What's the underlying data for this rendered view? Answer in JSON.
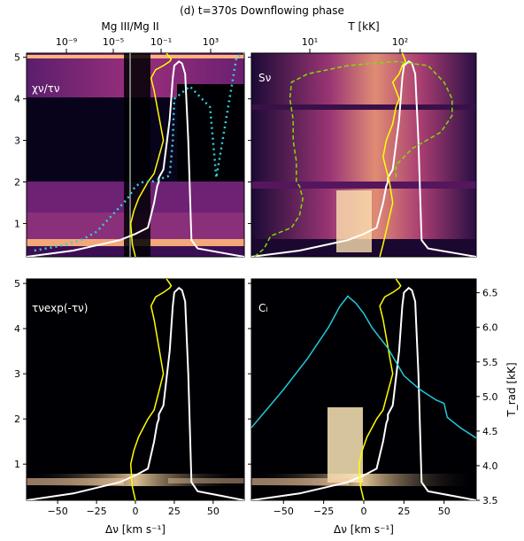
{
  "figure": {
    "title": "(d) t=370s Downflowing phase",
    "xlabel": "Δν [km s⁻¹]"
  },
  "panels": [
    {
      "label": "χν/τν",
      "top_axis_label": "Mg III/Mg II",
      "top_ticks": [
        "10⁻⁹",
        "10⁻⁵",
        "10⁻¹",
        "10³"
      ]
    },
    {
      "label": "Sν",
      "top_axis_label": "T [kK]",
      "top_ticks": [
        "10¹",
        "10²"
      ]
    },
    {
      "label": "τνexp(-τν)"
    },
    {
      "label": "Cₗ",
      "right_axis_label": "T_rad [kK]",
      "right_ticks": [
        "3.5",
        "4.0",
        "4.5",
        "5.0",
        "5.5",
        "6.0",
        "6.5"
      ]
    }
  ],
  "colors": {
    "heatmap_low": "#000004",
    "heatmap_mid": "#b5367a",
    "heatmap_high": "#fcfdbf",
    "tau_unity": "#ffffff",
    "velocity": "#ffff00",
    "ionization": "#33d0d8",
    "temperature": "#80dd00",
    "trad": "#22c8d8"
  },
  "chart_data": [
    {
      "type": "heatmap",
      "panel": "χν/τν",
      "x_range": [
        -70,
        70
      ],
      "y_range": [
        0.2,
        5.1
      ],
      "xticks": [
        -50,
        -25,
        0,
        25,
        50
      ],
      "yticks": [
        1,
        2,
        3,
        4,
        5
      ],
      "series": [
        {
          "name": "tau_unity",
          "x": [
            -70,
            -40,
            -10,
            0,
            8,
            10,
            12,
            13,
            14,
            15,
            15,
            18,
            22,
            24,
            25,
            28,
            30,
            32,
            34,
            36,
            40,
            55,
            70
          ],
          "y": [
            0.2,
            0.35,
            0.6,
            0.75,
            0.9,
            1.2,
            1.5,
            1.7,
            1.9,
            2.0,
            2.1,
            2.3,
            3.5,
            4.5,
            4.8,
            4.9,
            4.85,
            4.6,
            3.0,
            0.6,
            0.4,
            0.3,
            0.2
          ]
        },
        {
          "name": "velocity",
          "x": [
            0,
            -2,
            -3,
            -1,
            2,
            5,
            8,
            12,
            15,
            18,
            16,
            14,
            12,
            10,
            13,
            18,
            22,
            23,
            22,
            20
          ],
          "y": [
            0.2,
            0.5,
            1.0,
            1.3,
            1.6,
            1.8,
            2.0,
            2.2,
            2.6,
            3.0,
            3.4,
            3.8,
            4.2,
            4.5,
            4.7,
            4.8,
            4.9,
            4.95,
            5.0,
            5.1
          ]
        },
        {
          "name": "ionization",
          "x": [
            -65,
            -50,
            -35,
            -25,
            -20,
            -15,
            -10,
            -5,
            0,
            5,
            10,
            14,
            18,
            22,
            24,
            25,
            35,
            48,
            52,
            65,
            70
          ],
          "y": [
            0.35,
            0.45,
            0.6,
            0.8,
            1.0,
            1.2,
            1.4,
            1.6,
            1.9,
            2.0,
            2.0,
            2.05,
            2.1,
            2.15,
            3.0,
            4.0,
            4.3,
            3.8,
            2.1,
            5.0,
            5.1
          ]
        }
      ]
    },
    {
      "type": "heatmap",
      "panel": "Sν",
      "x_range": [
        -70,
        70
      ],
      "y_range": [
        0.2,
        5.1
      ],
      "xticks": [
        -50,
        -25,
        0,
        25,
        50
      ],
      "yticks": [
        1,
        2,
        3,
        4,
        5
      ],
      "series": [
        {
          "name": "tau_unity",
          "x": [
            -70,
            -40,
            -10,
            0,
            8,
            10,
            12,
            13,
            14,
            15,
            15,
            18,
            22,
            24,
            25,
            28,
            30,
            32,
            34,
            36,
            40,
            55,
            70
          ],
          "y": [
            0.2,
            0.35,
            0.6,
            0.75,
            0.9,
            1.2,
            1.5,
            1.7,
            1.9,
            2.0,
            2.1,
            2.3,
            3.5,
            4.5,
            4.8,
            4.9,
            4.85,
            4.6,
            3.0,
            0.6,
            0.4,
            0.3,
            0.2
          ]
        },
        {
          "name": "velocity",
          "x": [
            10,
            12,
            15,
            18,
            16,
            14,
            12,
            14,
            18,
            20,
            22,
            20,
            18,
            22,
            24,
            26,
            25,
            24
          ],
          "y": [
            0.2,
            0.5,
            1.0,
            1.5,
            2.0,
            2.3,
            2.6,
            3.0,
            3.4,
            3.8,
            4.0,
            4.2,
            4.4,
            4.6,
            4.8,
            4.9,
            5.0,
            5.1
          ]
        },
        {
          "name": "temperature",
          "x": [
            -68,
            -62,
            -58,
            -45,
            -40,
            -38,
            -40,
            -42,
            -42,
            -44,
            -44,
            -46,
            -45,
            -35,
            -10,
            20,
            40,
            50,
            55,
            55,
            48,
            30,
            20,
            20
          ],
          "y": [
            0.2,
            0.4,
            0.7,
            0.9,
            1.2,
            1.6,
            1.9,
            2.0,
            2.5,
            3.0,
            3.5,
            4.0,
            4.4,
            4.6,
            4.8,
            4.9,
            4.8,
            4.4,
            4.0,
            3.6,
            3.2,
            2.8,
            2.4,
            2.1
          ]
        }
      ]
    },
    {
      "type": "heatmap",
      "panel": "τνexp(-τν)",
      "x_range": [
        -70,
        70
      ],
      "y_range": [
        0.2,
        5.1
      ],
      "xticks": [
        -50,
        -25,
        0,
        25,
        50
      ],
      "yticks": [
        1,
        2,
        3,
        4,
        5
      ],
      "series": [
        {
          "name": "tau_unity",
          "x": [
            -70,
            -40,
            -10,
            0,
            8,
            10,
            12,
            13,
            14,
            15,
            15,
            18,
            22,
            24,
            25,
            28,
            30,
            32,
            34,
            36,
            40,
            55,
            70
          ],
          "y": [
            0.2,
            0.35,
            0.6,
            0.75,
            0.9,
            1.2,
            1.5,
            1.7,
            1.9,
            2.0,
            2.1,
            2.3,
            3.5,
            4.5,
            4.8,
            4.9,
            4.85,
            4.6,
            3.0,
            0.6,
            0.4,
            0.3,
            0.2
          ]
        },
        {
          "name": "velocity",
          "x": [
            0,
            -2,
            -3,
            -1,
            2,
            5,
            8,
            12,
            15,
            18,
            16,
            14,
            12,
            10,
            13,
            18,
            22,
            23,
            22,
            20
          ],
          "y": [
            0.2,
            0.5,
            1.0,
            1.3,
            1.6,
            1.8,
            2.0,
            2.2,
            2.6,
            3.0,
            3.4,
            3.8,
            4.2,
            4.5,
            4.7,
            4.8,
            4.9,
            4.95,
            5.0,
            5.1
          ]
        }
      ]
    },
    {
      "type": "heatmap",
      "panel": "Cₗ",
      "x_range": [
        -70,
        70
      ],
      "y_range": [
        0.2,
        5.1
      ],
      "right_y_range": [
        3.5,
        6.7
      ],
      "xticks": [
        -50,
        -25,
        0,
        25,
        50
      ],
      "yticks": [
        1,
        2,
        3,
        4,
        5
      ],
      "series": [
        {
          "name": "tau_unity",
          "x": [
            -70,
            -40,
            -10,
            0,
            8,
            10,
            12,
            13,
            14,
            15,
            15,
            18,
            22,
            24,
            25,
            28,
            30,
            32,
            34,
            36,
            40,
            55,
            70
          ],
          "y": [
            0.2,
            0.35,
            0.6,
            0.75,
            0.9,
            1.2,
            1.5,
            1.7,
            1.9,
            2.0,
            2.1,
            2.3,
            3.5,
            4.5,
            4.8,
            4.9,
            4.85,
            4.6,
            3.0,
            0.6,
            0.4,
            0.3,
            0.2
          ]
        },
        {
          "name": "velocity",
          "x": [
            0,
            -2,
            -3,
            -1,
            2,
            5,
            8,
            12,
            15,
            18,
            16,
            14,
            12,
            10,
            13,
            18,
            22,
            23,
            22,
            20
          ],
          "y": [
            0.2,
            0.5,
            1.0,
            1.3,
            1.6,
            1.8,
            2.0,
            2.2,
            2.6,
            3.0,
            3.4,
            3.8,
            4.2,
            4.5,
            4.7,
            4.8,
            4.9,
            4.95,
            5.0,
            5.1
          ]
        },
        {
          "name": "trad",
          "axis": "right",
          "x": [
            -70,
            -50,
            -35,
            -22,
            -15,
            -10,
            -5,
            0,
            5,
            10,
            15,
            20,
            25,
            35,
            45,
            50,
            52,
            60,
            70
          ],
          "y": [
            4.55,
            5.1,
            5.55,
            6.0,
            6.3,
            6.45,
            6.35,
            6.2,
            6.0,
            5.85,
            5.7,
            5.5,
            5.3,
            5.1,
            4.95,
            4.9,
            4.7,
            4.55,
            4.4
          ]
        }
      ]
    }
  ]
}
